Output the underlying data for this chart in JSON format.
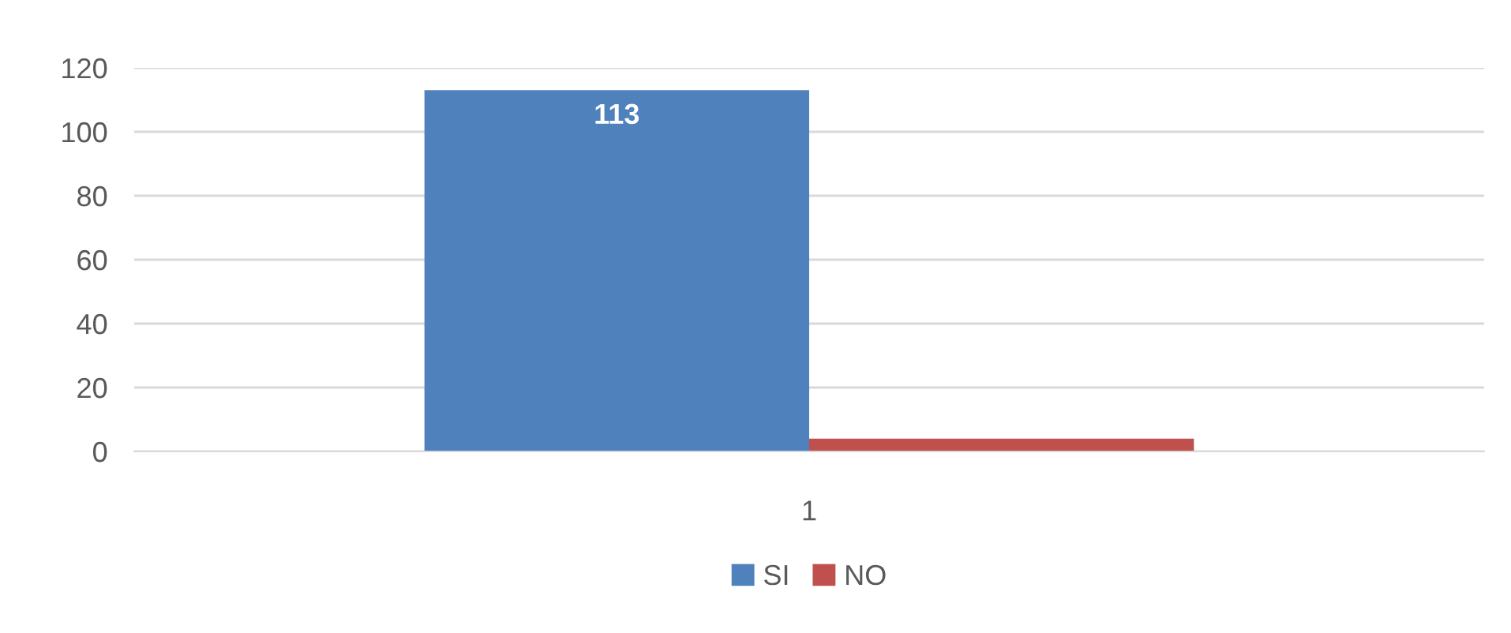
{
  "chart_data": {
    "type": "bar",
    "categories": [
      "1"
    ],
    "series": [
      {
        "name": "SI",
        "color": "#4f81bd",
        "values": [
          113
        ],
        "value_labels": [
          "113"
        ]
      },
      {
        "name": "NO",
        "color": "#c0504d",
        "values": [
          4
        ],
        "value_labels": [
          null
        ]
      }
    ],
    "ylim": [
      0,
      120
    ],
    "yticks": [
      0,
      20,
      40,
      60,
      80,
      100,
      120
    ],
    "grid": "y",
    "legend": "bottom"
  }
}
